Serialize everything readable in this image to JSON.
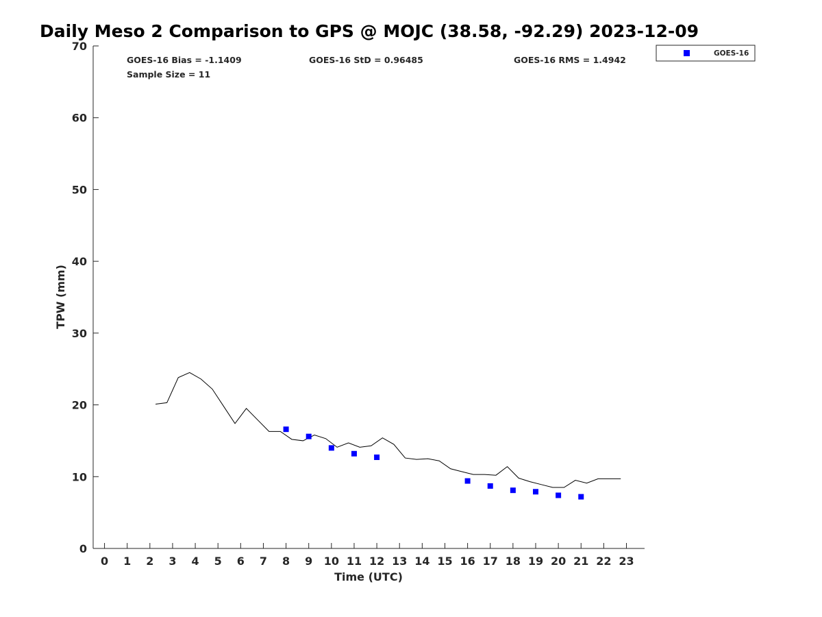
{
  "chart_data": {
    "type": "scatter",
    "title": "Daily Meso 2 Comparison to GPS @ MOJC (38.58, -92.29) 2023-12-09",
    "xlabel": "Time (UTC)",
    "ylabel": "TPW (mm)",
    "xlim": [
      -0.5,
      23.8
    ],
    "ylim": [
      0,
      70
    ],
    "x_ticks": [
      0,
      1,
      2,
      3,
      4,
      5,
      6,
      7,
      8,
      9,
      10,
      11,
      12,
      13,
      14,
      15,
      16,
      17,
      18,
      19,
      20,
      21,
      22,
      23
    ],
    "y_ticks": [
      0,
      10,
      20,
      30,
      40,
      50,
      60,
      70
    ],
    "grid": false,
    "legend_position": "outside-top-right",
    "stats": {
      "bias": "GOES-16 Bias = -1.1409",
      "std": "GOES-16 StD = 0.96485",
      "rms": "GOES-16 RMS = 1.4942",
      "sample": "Sample Size = 11"
    },
    "series": [
      {
        "name": "GOES-16",
        "marker": "square",
        "color": "#0000ff",
        "x": [
          8,
          9,
          10,
          11,
          12,
          16,
          17,
          18,
          19,
          20,
          21
        ],
        "y": [
          16.6,
          15.6,
          14.0,
          13.2,
          12.7,
          9.4,
          8.7,
          8.1,
          7.9,
          7.4,
          7.2
        ]
      },
      {
        "marker": "line",
        "color": "#000000",
        "x": [
          2.25,
          2.75,
          3.25,
          3.75,
          4.25,
          4.75,
          5.25,
          5.75,
          6.25,
          6.75,
          7.25,
          7.75,
          8.25,
          8.75,
          9.25,
          9.75,
          10.25,
          10.75,
          11.25,
          11.75,
          12.25,
          12.75,
          13.25,
          13.75,
          14.25,
          14.75,
          15.25,
          15.75,
          16.25,
          16.75,
          17.25,
          17.75,
          18.25,
          18.75,
          19.25,
          19.75,
          20.25,
          20.75,
          21.25,
          21.75,
          22.25,
          22.75
        ],
        "y": [
          20.1,
          20.3,
          23.8,
          24.5,
          23.6,
          22.2,
          19.8,
          17.4,
          19.5,
          17.9,
          16.3,
          16.3,
          15.2,
          15.0,
          15.8,
          15.3,
          14.1,
          14.7,
          14.1,
          14.3,
          15.4,
          14.5,
          12.6,
          12.4,
          12.5,
          12.2,
          11.1,
          10.7,
          10.3,
          10.3,
          10.2,
          11.4,
          9.8,
          9.3,
          8.9,
          8.5,
          8.5,
          9.5,
          9.1,
          9.7,
          9.7,
          9.7
        ]
      }
    ]
  }
}
